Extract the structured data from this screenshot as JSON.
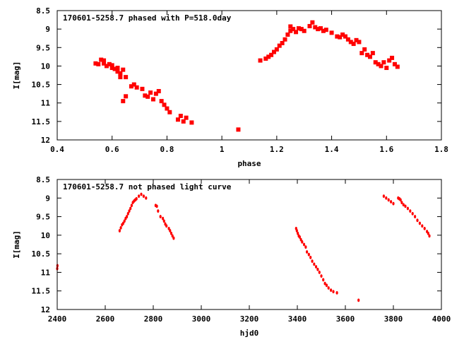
{
  "charts": [
    {
      "type": "scatter",
      "title": "170601-5258.7 phased with P=518.0day",
      "xlabel": "phase",
      "ylabel": "I[mag]",
      "xlim": [
        0.4,
        1.8
      ],
      "ylim": [
        8.5,
        12
      ],
      "y_inverted": true,
      "xticks": [
        "0.4",
        "0.6",
        "0.8",
        "1",
        "1.2",
        "1.4",
        "1.6",
        "1.8"
      ],
      "yticks": [
        "8.5",
        "9",
        "9.5",
        "10",
        "10.5",
        "11",
        "11.5",
        "12"
      ],
      "marker_color": "#ff0000",
      "marker": "large",
      "points": [
        [
          0.54,
          9.93
        ],
        [
          0.55,
          9.95
        ],
        [
          0.56,
          9.83
        ],
        [
          0.57,
          9.85
        ],
        [
          0.57,
          9.93
        ],
        [
          0.58,
          10.0
        ],
        [
          0.59,
          9.95
        ],
        [
          0.6,
          10.05
        ],
        [
          0.6,
          9.98
        ],
        [
          0.61,
          10.08
        ],
        [
          0.62,
          10.15
        ],
        [
          0.62,
          10.05
        ],
        [
          0.63,
          10.2
        ],
        [
          0.63,
          10.3
        ],
        [
          0.64,
          10.1
        ],
        [
          0.65,
          10.3
        ],
        [
          0.64,
          10.95
        ],
        [
          0.65,
          10.82
        ],
        [
          0.67,
          10.55
        ],
        [
          0.68,
          10.5
        ],
        [
          0.69,
          10.58
        ],
        [
          0.71,
          10.62
        ],
        [
          0.72,
          10.8
        ],
        [
          0.73,
          10.83
        ],
        [
          0.74,
          10.72
        ],
        [
          0.75,
          10.9
        ],
        [
          0.76,
          10.75
        ],
        [
          0.77,
          10.68
        ],
        [
          0.78,
          10.95
        ],
        [
          0.79,
          11.05
        ],
        [
          0.8,
          11.15
        ],
        [
          0.81,
          11.25
        ],
        [
          0.84,
          11.45
        ],
        [
          0.85,
          11.35
        ],
        [
          0.86,
          11.5
        ],
        [
          0.87,
          11.4
        ],
        [
          0.89,
          11.53
        ],
        [
          1.06,
          11.72
        ],
        [
          1.14,
          9.85
        ],
        [
          1.16,
          9.8
        ],
        [
          1.17,
          9.75
        ],
        [
          1.18,
          9.7
        ],
        [
          1.19,
          9.62
        ],
        [
          1.2,
          9.55
        ],
        [
          1.21,
          9.45
        ],
        [
          1.22,
          9.38
        ],
        [
          1.23,
          9.28
        ],
        [
          1.24,
          9.15
        ],
        [
          1.25,
          8.93
        ],
        [
          1.25,
          9.05
        ],
        [
          1.26,
          9.0
        ],
        [
          1.27,
          9.08
        ],
        [
          1.28,
          8.98
        ],
        [
          1.29,
          9.0
        ],
        [
          1.3,
          9.05
        ],
        [
          1.32,
          8.92
        ],
        [
          1.33,
          8.82
        ],
        [
          1.34,
          8.95
        ],
        [
          1.35,
          9.0
        ],
        [
          1.36,
          8.98
        ],
        [
          1.37,
          9.05
        ],
        [
          1.38,
          9.02
        ],
        [
          1.4,
          9.1
        ],
        [
          1.42,
          9.2
        ],
        [
          1.43,
          9.22
        ],
        [
          1.44,
          9.15
        ],
        [
          1.45,
          9.2
        ],
        [
          1.46,
          9.28
        ],
        [
          1.47,
          9.35
        ],
        [
          1.48,
          9.4
        ],
        [
          1.49,
          9.3
        ],
        [
          1.5,
          9.35
        ],
        [
          1.51,
          9.65
        ],
        [
          1.52,
          9.55
        ],
        [
          1.53,
          9.7
        ],
        [
          1.54,
          9.75
        ],
        [
          1.55,
          9.65
        ],
        [
          1.56,
          9.9
        ],
        [
          1.57,
          9.95
        ],
        [
          1.58,
          10.0
        ],
        [
          1.59,
          9.9
        ],
        [
          1.6,
          10.05
        ],
        [
          1.61,
          9.85
        ],
        [
          1.62,
          9.78
        ],
        [
          1.63,
          9.95
        ],
        [
          1.64,
          10.02
        ]
      ]
    },
    {
      "type": "scatter",
      "title": "170601-5258.7 not phased light curve",
      "xlabel": "hjd0",
      "ylabel": "I[mag]",
      "xlim": [
        2400,
        4000
      ],
      "ylim": [
        8.5,
        12
      ],
      "y_inverted": true,
      "xticks": [
        "2400",
        "2600",
        "2800",
        "3000",
        "3200",
        "3400",
        "3600",
        "3800",
        "4000"
      ],
      "yticks": [
        "8.5",
        "9",
        "9.5",
        "10",
        "10.5",
        "11",
        "11.5",
        "12"
      ],
      "marker_color": "#ff0000",
      "marker": "small",
      "points": [
        [
          2400,
          10.9
        ],
        [
          2401,
          10.82
        ],
        [
          2660,
          9.88
        ],
        [
          2665,
          9.8
        ],
        [
          2670,
          9.72
        ],
        [
          2675,
          9.68
        ],
        [
          2680,
          9.62
        ],
        [
          2685,
          9.55
        ],
        [
          2690,
          9.5
        ],
        [
          2695,
          9.42
        ],
        [
          2700,
          9.35
        ],
        [
          2705,
          9.28
        ],
        [
          2710,
          9.2
        ],
        [
          2715,
          9.12
        ],
        [
          2720,
          9.08
        ],
        [
          2725,
          9.05
        ],
        [
          2730,
          9.02
        ],
        [
          2740,
          8.95
        ],
        [
          2750,
          8.9
        ],
        [
          2760,
          8.95
        ],
        [
          2770,
          9.0
        ],
        [
          2810,
          9.2
        ],
        [
          2815,
          9.22
        ],
        [
          2820,
          9.35
        ],
        [
          2830,
          9.5
        ],
        [
          2840,
          9.55
        ],
        [
          2845,
          9.62
        ],
        [
          2850,
          9.7
        ],
        [
          2855,
          9.75
        ],
        [
          2865,
          9.82
        ],
        [
          2870,
          9.88
        ],
        [
          2875,
          9.95
        ],
        [
          2880,
          10.02
        ],
        [
          2885,
          10.08
        ],
        [
          3395,
          9.82
        ],
        [
          3398,
          9.88
        ],
        [
          3402,
          9.95
        ],
        [
          3406,
          10.02
        ],
        [
          3410,
          10.05
        ],
        [
          3415,
          10.12
        ],
        [
          3420,
          10.18
        ],
        [
          3428,
          10.25
        ],
        [
          3435,
          10.32
        ],
        [
          3440,
          10.45
        ],
        [
          3448,
          10.52
        ],
        [
          3455,
          10.6
        ],
        [
          3462,
          10.7
        ],
        [
          3470,
          10.78
        ],
        [
          3478,
          10.85
        ],
        [
          3485,
          10.92
        ],
        [
          3492,
          11.0
        ],
        [
          3500,
          11.1
        ],
        [
          3508,
          11.2
        ],
        [
          3515,
          11.3
        ],
        [
          3522,
          11.35
        ],
        [
          3530,
          11.42
        ],
        [
          3540,
          11.48
        ],
        [
          3550,
          11.52
        ],
        [
          3565,
          11.55
        ],
        [
          3655,
          11.75
        ],
        [
          3760,
          8.95
        ],
        [
          3770,
          9.0
        ],
        [
          3780,
          9.05
        ],
        [
          3790,
          9.1
        ],
        [
          3800,
          9.15
        ],
        [
          3820,
          9.0
        ],
        [
          3825,
          9.02
        ],
        [
          3830,
          9.05
        ],
        [
          3835,
          9.12
        ],
        [
          3842,
          9.18
        ],
        [
          3850,
          9.22
        ],
        [
          3860,
          9.28
        ],
        [
          3870,
          9.35
        ],
        [
          3880,
          9.42
        ],
        [
          3890,
          9.5
        ],
        [
          3900,
          9.6
        ],
        [
          3910,
          9.68
        ],
        [
          3920,
          9.75
        ],
        [
          3930,
          9.82
        ],
        [
          3940,
          9.9
        ],
        [
          3945,
          9.95
        ],
        [
          3950,
          10.02
        ]
      ]
    }
  ]
}
